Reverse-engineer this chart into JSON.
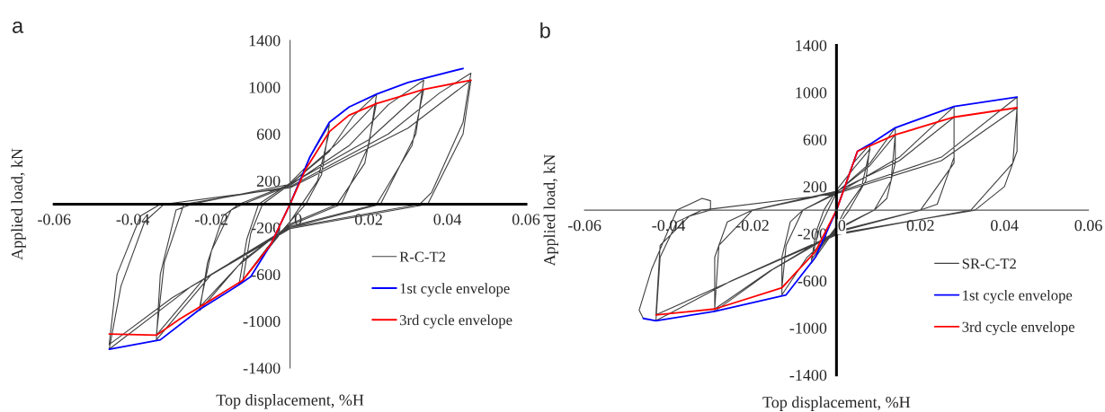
{
  "chart_data": [
    {
      "type": "line",
      "title": "a",
      "xlabel": "Top displacement, %H",
      "ylabel": "Applied load, kN",
      "xlim": [
        -0.06,
        0.06
      ],
      "ylim": [
        -1400,
        1400
      ],
      "xticks": [
        -0.06,
        -0.04,
        -0.02,
        0,
        0.02,
        0.04,
        0.06
      ],
      "yticks": [
        -1400,
        -1000,
        -600,
        -200,
        200,
        600,
        1000,
        1400
      ],
      "grid": false,
      "legend": "bottom right",
      "series": [
        {
          "name": "R-C-T2",
          "color": "#404040",
          "x": [
            0,
            0.005,
            0.01,
            0.008,
            0.004,
            0,
            -0.006,
            -0.013,
            -0.011,
            -0.008,
            0,
            0.005,
            0.01,
            0.007,
            0.003,
            0,
            -0.006,
            -0.012,
            -0.01,
            -0.007,
            0,
            0.01,
            0.016,
            0.022,
            0.02,
            0.013,
            0,
            -0.012,
            -0.023,
            -0.021,
            -0.017,
            -0.013,
            0,
            0.012,
            0.022,
            0.019,
            0.012,
            0,
            -0.013,
            -0.023,
            -0.02,
            -0.015,
            -0.012,
            0,
            0.015,
            0.025,
            0.034,
            0.032,
            0.023,
            0,
            -0.02,
            -0.034,
            -0.033,
            -0.029,
            -0.025,
            0,
            0.02,
            0.034,
            0.031,
            0.022,
            0,
            -0.022,
            -0.034,
            -0.032,
            -0.027,
            0,
            0.025,
            0.038,
            0.046,
            0.044,
            0.036,
            0.033,
            0,
            -0.025,
            -0.046,
            -0.043,
            -0.037,
            -0.032,
            0,
            0.03,
            0.046,
            0.044,
            0.035,
            0,
            -0.03,
            -0.046,
            -0.044,
            -0.038,
            -0.033
          ],
          "values": [
            0,
            400,
            680,
            250,
            0,
            -150,
            -400,
            -690,
            -300,
            0,
            180,
            350,
            620,
            200,
            0,
            -150,
            -380,
            -650,
            -250,
            0,
            170,
            450,
            750,
            940,
            500,
            0,
            -180,
            -480,
            -910,
            -500,
            -100,
            0,
            170,
            520,
            870,
            350,
            0,
            -170,
            -520,
            -880,
            -400,
            -50,
            0,
            160,
            500,
            850,
            1060,
            600,
            0,
            -200,
            -600,
            -1160,
            -600,
            -50,
            0,
            170,
            550,
            980,
            500,
            0,
            -190,
            -640,
            -1120,
            -500,
            0,
            150,
            600,
            950,
            1120,
            700,
            100,
            0,
            -200,
            -700,
            -1240,
            -700,
            -150,
            0,
            140,
            650,
            1060,
            600,
            0,
            -210,
            -800,
            -1200,
            -600,
            -100,
            0
          ]
        },
        {
          "name": "1st cycle envelope",
          "color": "#0000ff",
          "x": [
            -0.046,
            -0.033,
            -0.023,
            -0.013,
            -0.01,
            -0.005,
            0,
            0.005,
            0.01,
            0.015,
            0.022,
            0.03,
            0.044
          ],
          "values": [
            -1240,
            -1160,
            -900,
            -690,
            -620,
            -350,
            0,
            400,
            700,
            830,
            940,
            1040,
            1160
          ]
        },
        {
          "name": "3rd cycle envelope",
          "color": "#ff0000",
          "x": [
            -0.046,
            -0.034,
            -0.028,
            -0.023,
            -0.012,
            -0.005,
            0,
            0.004,
            0.01,
            0.015,
            0.022,
            0.034,
            0.046
          ],
          "values": [
            -1110,
            -1120,
            -980,
            -880,
            -650,
            -350,
            0,
            300,
            620,
            760,
            860,
            980,
            1060
          ]
        }
      ]
    },
    {
      "type": "line",
      "title": "b",
      "xlabel": "Top displacement, %H",
      "ylabel": "Applied load, kN",
      "xlim": [
        -0.06,
        0.06
      ],
      "ylim": [
        -1400,
        1400
      ],
      "xticks": [
        -0.06,
        -0.04,
        -0.02,
        0,
        0.02,
        0.04,
        0.06
      ],
      "yticks": [
        -1400,
        -1000,
        -600,
        -200,
        200,
        600,
        1000,
        1400
      ],
      "grid": false,
      "legend": "bottom right",
      "series": [
        {
          "name": "SR-C-T2",
          "color": "#404040",
          "x": [
            0,
            0.004,
            0.008,
            0.007,
            0.003,
            0,
            -0.003,
            -0.006,
            -0.005,
            -0.003,
            0,
            0.004,
            0.008,
            0.006,
            0.002,
            0,
            -0.006,
            -0.004,
            -0.002,
            0,
            0.008,
            0.014,
            0.014,
            0.012,
            0.009,
            0,
            -0.007,
            -0.013,
            -0.013,
            -0.011,
            -0.008,
            0,
            0.008,
            0.014,
            0.013,
            0.009,
            0,
            -0.013,
            -0.012,
            -0.008,
            0,
            0.015,
            0.028,
            0.028,
            0.024,
            0.02,
            0,
            -0.015,
            -0.029,
            -0.029,
            -0.026,
            -0.02,
            0,
            0.015,
            0.028,
            0.028,
            0.02,
            0,
            -0.016,
            -0.029,
            -0.028,
            -0.02,
            0,
            0.025,
            0.043,
            0.043,
            0.04,
            0.033,
            0,
            -0.025,
            -0.043,
            -0.042,
            -0.038,
            -0.032,
            0,
            0.025,
            0.043,
            0.042,
            0.032,
            0,
            -0.028,
            -0.043,
            -0.042,
            -0.035,
            -0.03,
            -0.03,
            -0.032,
            -0.038,
            -0.044,
            -0.047,
            -0.046
          ],
          "values": [
            0,
            400,
            560,
            250,
            0,
            -150,
            -300,
            -450,
            -200,
            0,
            170,
            350,
            520,
            200,
            0,
            -140,
            -420,
            -150,
            0,
            150,
            400,
            700,
            400,
            100,
            0,
            -170,
            -400,
            -720,
            -400,
            -100,
            0,
            150,
            380,
            640,
            250,
            0,
            -160,
            -660,
            -300,
            0,
            140,
            450,
            880,
            450,
            50,
            0,
            -190,
            -500,
            -860,
            -400,
            -100,
            0,
            160,
            420,
            790,
            400,
            0,
            -180,
            -520,
            -840,
            -300,
            0,
            150,
            450,
            960,
            500,
            200,
            0,
            -200,
            -600,
            -940,
            -400,
            -100,
            0,
            140,
            420,
            870,
            400,
            0,
            -210,
            -650,
            -890,
            -300,
            -50,
            0,
            80,
            100,
            0,
            -500,
            -850,
            -920
          ]
        },
        {
          "name": "1st cycle envelope",
          "color": "#0000ff",
          "x": [
            -0.046,
            -0.043,
            -0.029,
            -0.012,
            -0.005,
            0,
            0.005,
            0.008,
            0.014,
            0.028,
            0.043
          ],
          "values": [
            -920,
            -940,
            -860,
            -720,
            -400,
            0,
            500,
            560,
            700,
            880,
            960
          ]
        },
        {
          "name": "3rd cycle envelope",
          "color": "#ff0000",
          "x": [
            -0.043,
            -0.029,
            -0.013,
            -0.005,
            0,
            0.005,
            0.014,
            0.028,
            0.043
          ],
          "values": [
            -890,
            -840,
            -660,
            -350,
            0,
            500,
            640,
            790,
            870
          ]
        }
      ]
    }
  ]
}
